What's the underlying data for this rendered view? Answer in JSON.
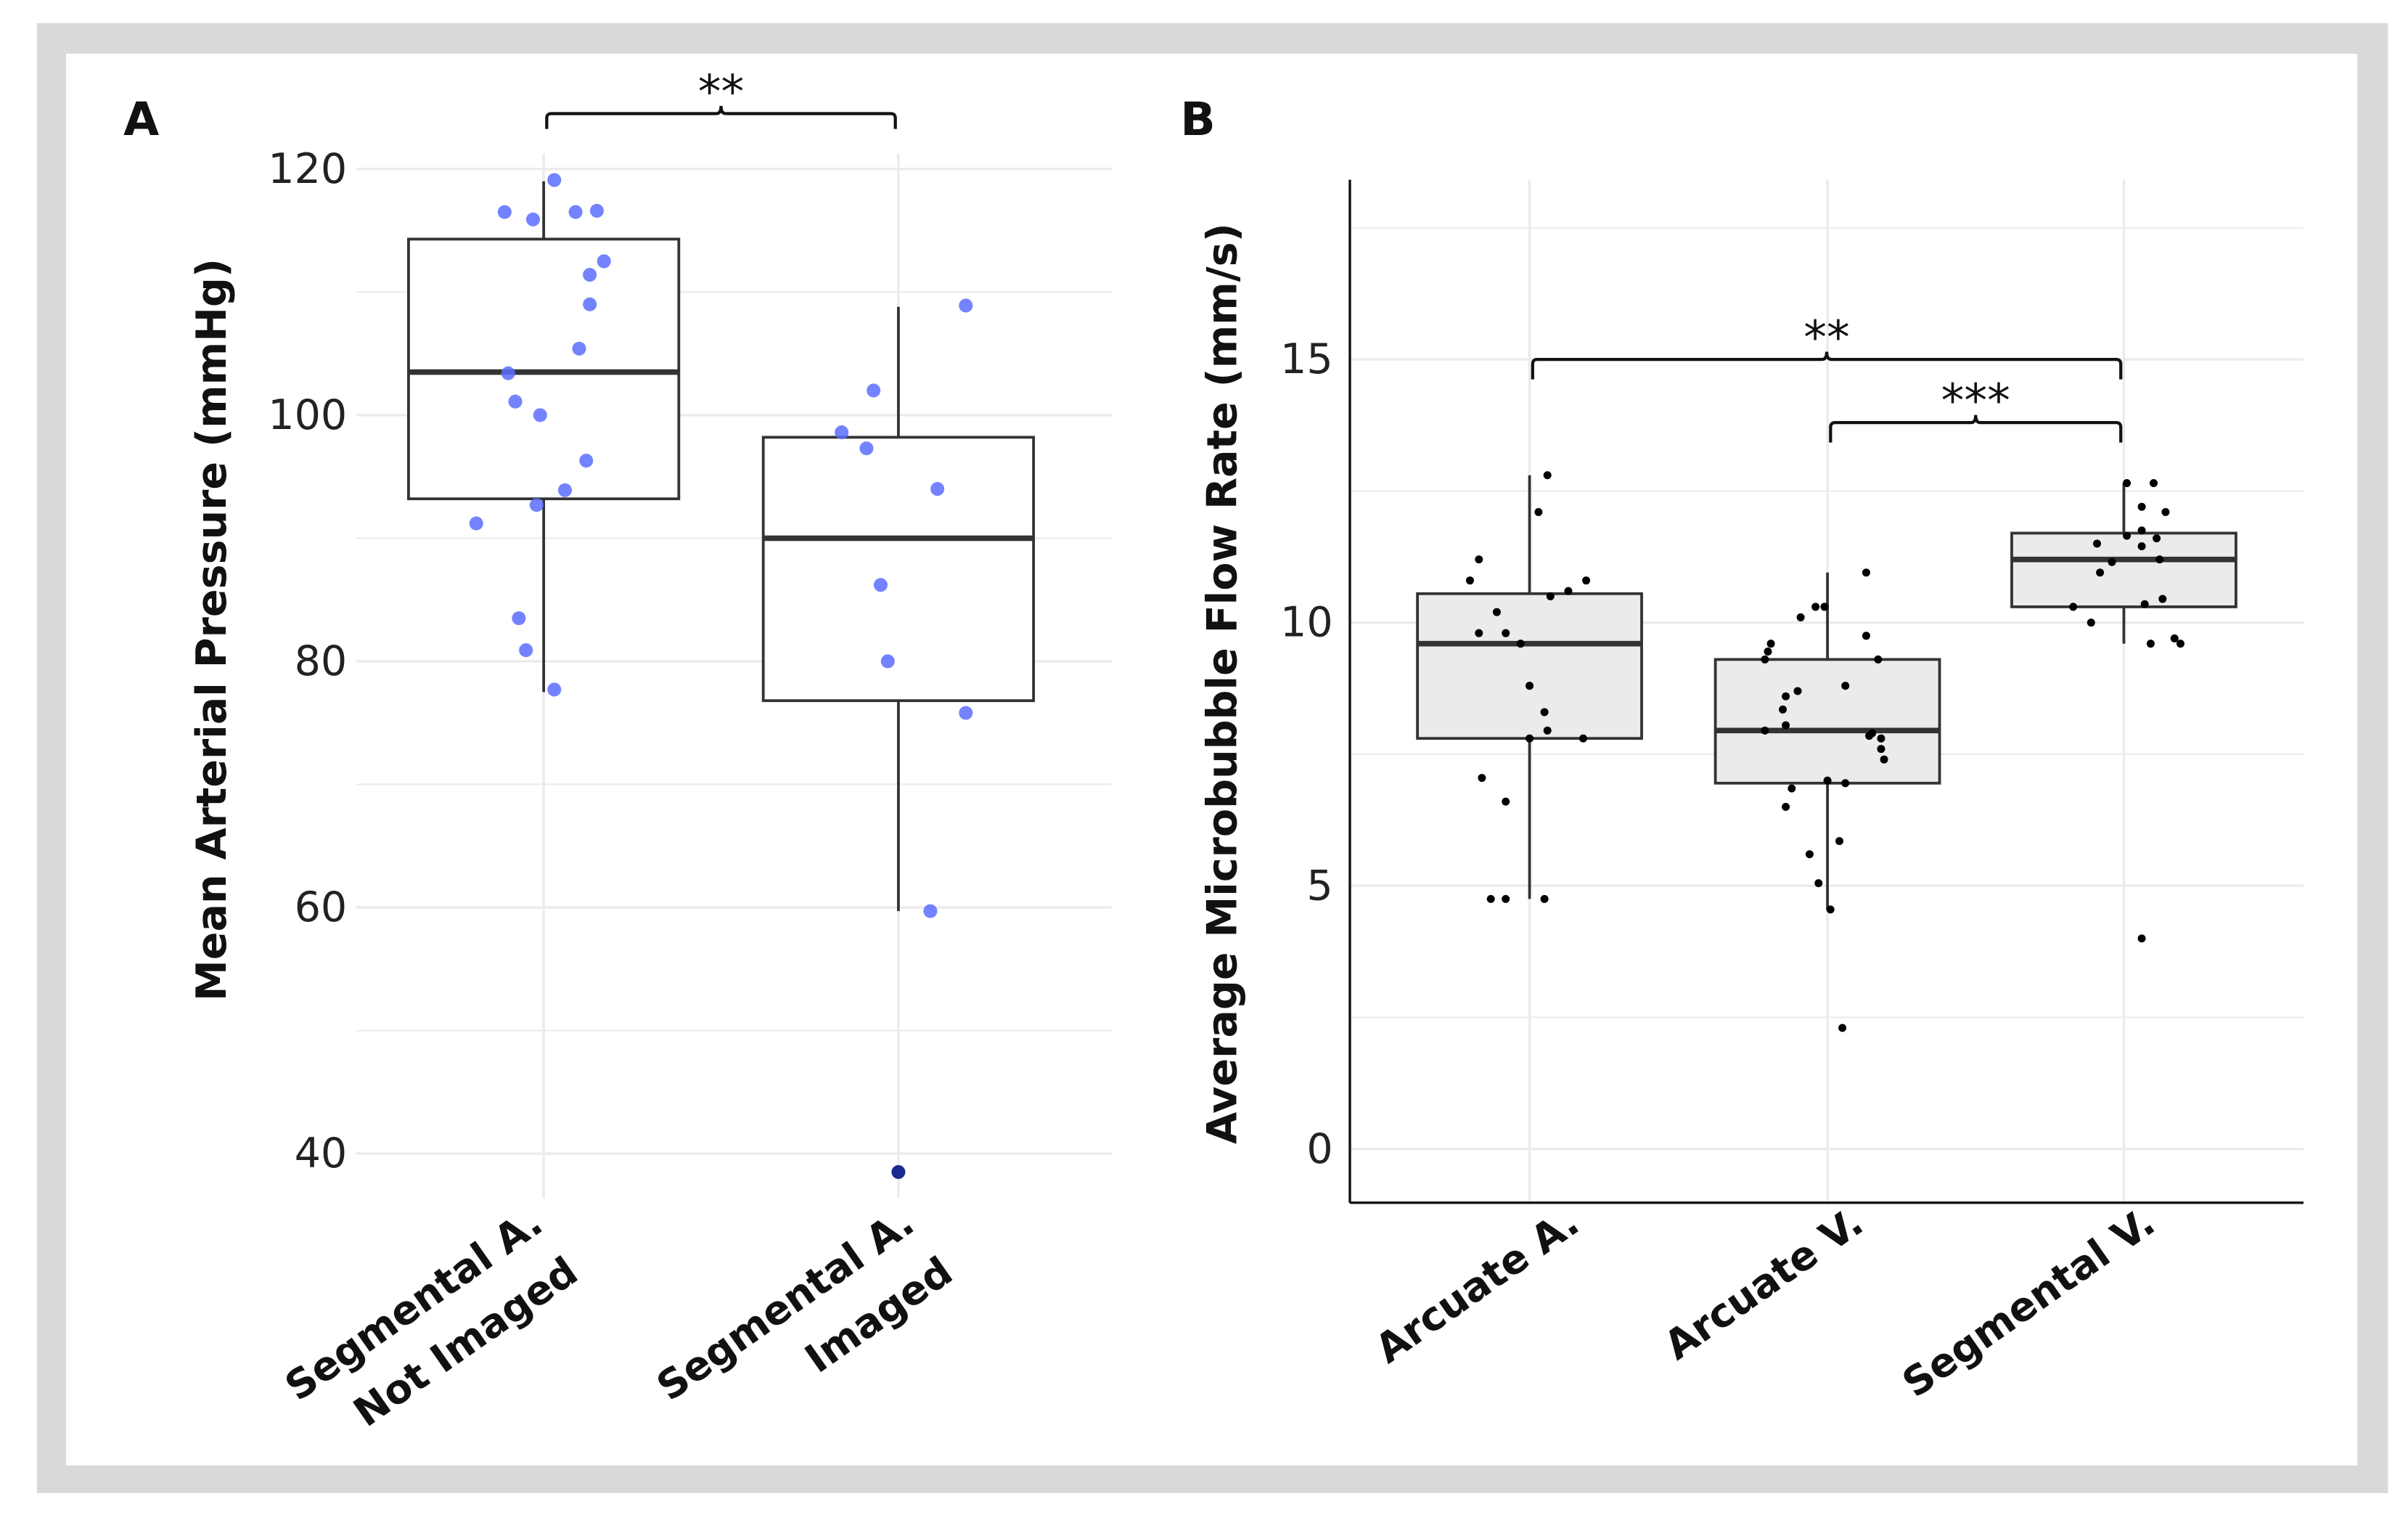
{
  "colors": {
    "frame": "#d9d9d9",
    "grid": "#ebebeb",
    "box_stroke": "#333333",
    "box_fill_b": "#ebebeb",
    "point_a": "#5b6dff",
    "outlier_a": "#1b2a8f",
    "point_b": "#000000"
  },
  "chart_data": [
    {
      "type": "box",
      "panel_label": "A",
      "ylabel": "Mean Arterial Pressure (mmHg)",
      "xlabel": "",
      "ylim": [
        35,
        125
      ],
      "yticks": [
        40,
        60,
        80,
        100,
        120
      ],
      "ytick_labels": [
        "40",
        "60",
        "80",
        "100",
        "120"
      ],
      "minor_grid": [
        50,
        70,
        90,
        110
      ],
      "categories": [
        {
          "lines": [
            "Segmental A.",
            "Not Imaged"
          ]
        },
        {
          "lines": [
            "Segmental A.",
            "Imaged"
          ]
        }
      ],
      "boxes": [
        {
          "q1": 93.2,
          "median": 103.5,
          "q3": 114.3,
          "whisker_low": 77.5,
          "whisker_high": 119,
          "outliers": []
        },
        {
          "q1": 76.8,
          "median": 90,
          "q3": 98.2,
          "whisker_low": 59.7,
          "whisker_high": 108.8,
          "outliers": [
            38.5
          ]
        }
      ],
      "points": [
        [
          [
            -0.11,
            116.5
          ],
          [
            -0.03,
            115.9
          ],
          [
            0.03,
            119.1
          ],
          [
            0.09,
            116.5
          ],
          [
            0.15,
            116.6
          ],
          [
            0.17,
            112.5
          ],
          [
            0.13,
            111.4
          ],
          [
            0.13,
            109
          ],
          [
            0.1,
            105.4
          ],
          [
            -0.1,
            103.4
          ],
          [
            -0.08,
            101.1
          ],
          [
            -0.01,
            100
          ],
          [
            0.12,
            96.3
          ],
          [
            0.06,
            93.9
          ],
          [
            -0.02,
            92.7
          ],
          [
            -0.19,
            91.2
          ],
          [
            -0.07,
            83.5
          ],
          [
            -0.05,
            80.9
          ],
          [
            0.03,
            77.7
          ]
        ],
        [
          [
            -0.07,
            102
          ],
          [
            -0.16,
            98.6
          ],
          [
            -0.09,
            97.3
          ],
          [
            0.19,
            108.9
          ],
          [
            0.11,
            94
          ],
          [
            -0.05,
            86.2
          ],
          [
            -0.03,
            80
          ],
          [
            0.19,
            75.8
          ],
          [
            0.09,
            59.7
          ]
        ]
      ],
      "significance": [
        {
          "from": 0,
          "to": 1,
          "y": 124.5,
          "label": "**"
        }
      ]
    },
    {
      "type": "box",
      "panel_label": "B",
      "ylabel": "Average Microbubble Flow Rate (mm/s)",
      "xlabel": "",
      "ylim": [
        -1,
        18.3
      ],
      "yticks": [
        0,
        5,
        10,
        15
      ],
      "ytick_labels": [
        "0",
        "5",
        "10",
        "15"
      ],
      "minor_grid": [
        2.5,
        7.5,
        12.5,
        17.5
      ],
      "categories": [
        {
          "lines": [
            "Arcuate A."
          ]
        },
        {
          "lines": [
            "Arcuate V."
          ]
        },
        {
          "lines": [
            "Segmental V."
          ]
        }
      ],
      "boxes": [
        {
          "q1": 7.8,
          "median": 9.6,
          "q3": 10.55,
          "whisker_low": 4.75,
          "whisker_high": 12.8,
          "outliers": []
        },
        {
          "q1": 6.95,
          "median": 7.95,
          "q3": 9.3,
          "whisker_low": 4.55,
          "whisker_high": 10.95,
          "outliers": []
        },
        {
          "q1": 10.3,
          "median": 11.2,
          "q3": 11.7,
          "whisker_low": 9.6,
          "whisker_high": 12.65,
          "outliers": []
        }
      ],
      "points": [
        [
          [
            0.06,
            12.8
          ],
          [
            0.03,
            12.1
          ],
          [
            -0.17,
            11.2
          ],
          [
            -0.2,
            10.8
          ],
          [
            0.19,
            10.8
          ],
          [
            0.13,
            10.6
          ],
          [
            0.07,
            10.5
          ],
          [
            -0.11,
            10.2
          ],
          [
            -0.17,
            9.8
          ],
          [
            -0.08,
            9.8
          ],
          [
            -0.03,
            9.6
          ],
          [
            0,
            8.8
          ],
          [
            0.05,
            8.3
          ],
          [
            0.06,
            7.95
          ],
          [
            0,
            7.8
          ],
          [
            0.18,
            7.8
          ],
          [
            -0.16,
            7.05
          ],
          [
            -0.08,
            6.6
          ],
          [
            -0.13,
            4.75
          ],
          [
            -0.08,
            4.75
          ],
          [
            0.05,
            4.75
          ]
        ],
        [
          [
            0.13,
            10.95
          ],
          [
            -0.04,
            10.3
          ],
          [
            -0.01,
            10.3
          ],
          [
            -0.09,
            10.1
          ],
          [
            0.13,
            9.75
          ],
          [
            -0.19,
            9.6
          ],
          [
            -0.2,
            9.45
          ],
          [
            -0.21,
            9.3
          ],
          [
            0.17,
            9.3
          ],
          [
            0.06,
            8.8
          ],
          [
            -0.1,
            8.7
          ],
          [
            -0.14,
            8.6
          ],
          [
            -0.15,
            8.35
          ],
          [
            -0.14,
            8.05
          ],
          [
            -0.21,
            7.95
          ],
          [
            0.15,
            7.9
          ],
          [
            0.14,
            7.85
          ],
          [
            0.18,
            7.8
          ],
          [
            0.18,
            7.6
          ],
          [
            0.19,
            7.4
          ],
          [
            0,
            7
          ],
          [
            0.06,
            6.95
          ],
          [
            -0.12,
            6.85
          ],
          [
            -0.14,
            6.5
          ],
          [
            0.04,
            5.85
          ],
          [
            -0.06,
            5.6
          ],
          [
            -0.03,
            5.05
          ],
          [
            0.01,
            4.55
          ],
          [
            0.05,
            2.3
          ]
        ],
        [
          [
            0.01,
            12.65
          ],
          [
            0.1,
            12.65
          ],
          [
            0.06,
            12.2
          ],
          [
            0.14,
            12.1
          ],
          [
            0.06,
            11.75
          ],
          [
            0.01,
            11.65
          ],
          [
            0.11,
            11.6
          ],
          [
            -0.09,
            11.5
          ],
          [
            0.06,
            11.45
          ],
          [
            0.12,
            11.2
          ],
          [
            -0.04,
            11.15
          ],
          [
            -0.08,
            10.95
          ],
          [
            0.13,
            10.45
          ],
          [
            0.07,
            10.35
          ],
          [
            -0.17,
            10.3
          ],
          [
            -0.11,
            10
          ],
          [
            0.17,
            9.7
          ],
          [
            0.19,
            9.6
          ],
          [
            0.09,
            9.6
          ],
          [
            0.06,
            4
          ]
        ]
      ],
      "significance": [
        {
          "from": 0,
          "to": 2,
          "y": 15,
          "label": "**"
        },
        {
          "from": 1,
          "to": 2,
          "y": 13.8,
          "label": "***"
        }
      ]
    }
  ]
}
